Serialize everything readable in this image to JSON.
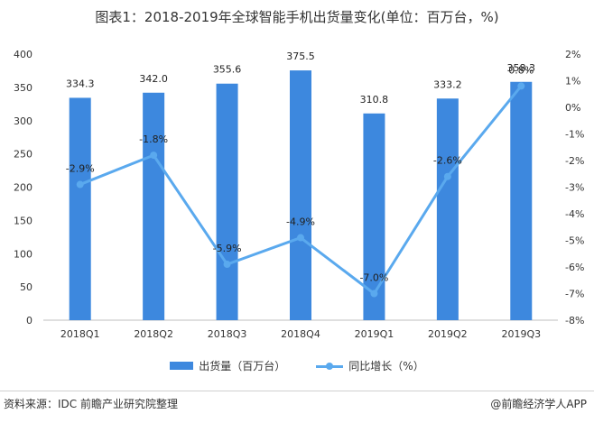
{
  "title": "图表1：2018-2019年全球智能手机出货量变化(单位：百万台，%)",
  "chart_data": {
    "type": "bar",
    "categories": [
      "2018Q1",
      "2018Q2",
      "2018Q3",
      "2018Q4",
      "2019Q1",
      "2019Q2",
      "2019Q3"
    ],
    "series": [
      {
        "name": "出货量（百万台）",
        "type": "bar",
        "axis": "left",
        "values": [
          334.3,
          342.0,
          355.6,
          375.5,
          310.8,
          333.2,
          358.3
        ],
        "value_labels": [
          "334.3",
          "342.0",
          "355.6",
          "375.5",
          "310.8",
          "333.2",
          "358.3"
        ],
        "color": "#3d88de"
      },
      {
        "name": "同比增长（%）",
        "type": "line",
        "axis": "right",
        "values": [
          -2.9,
          -1.8,
          -5.9,
          -4.9,
          -7.0,
          -2.6,
          0.8
        ],
        "value_labels": [
          "-2.9%",
          "-1.8%",
          "-5.9%",
          "-4.9%",
          "-7.0%",
          "-2.6%",
          "0.8%"
        ],
        "color": "#5aa9ee"
      }
    ],
    "ylim": [
      0,
      400
    ],
    "yticks": [
      "0",
      "50",
      "100",
      "150",
      "200",
      "250",
      "300",
      "350",
      "400"
    ],
    "y2lim": [
      -8,
      2
    ],
    "y2ticks": [
      "-8%",
      "-7%",
      "-6%",
      "-5%",
      "-4%",
      "-3%",
      "-2%",
      "-1%",
      "0%",
      "1%",
      "2%"
    ],
    "grid": false,
    "legend_position": "bottom"
  },
  "legend": {
    "bar_label": "出货量（百万台）",
    "line_label": "同比增长（%）"
  },
  "footer": {
    "source": "资料来源：IDC 前瞻产业研究院整理",
    "brand": "@前瞻经济学人APP"
  }
}
